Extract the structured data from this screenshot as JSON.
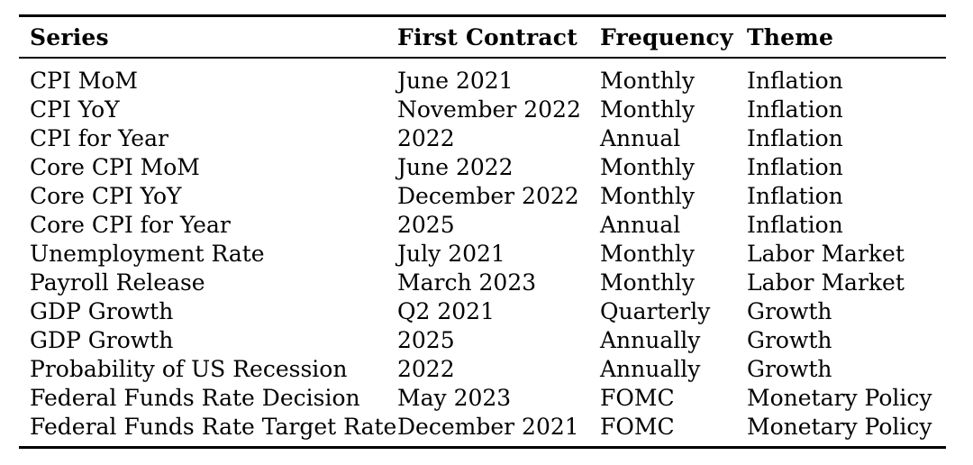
{
  "table": {
    "columns": [
      "Series",
      "First Contract",
      "Frequency",
      "Theme"
    ],
    "rows": [
      {
        "series": "CPI MoM",
        "first_contract": "June 2021",
        "frequency": "Monthly",
        "theme": "Inflation"
      },
      {
        "series": "CPI YoY",
        "first_contract": "November 2022",
        "frequency": "Monthly",
        "theme": "Inflation"
      },
      {
        "series": "CPI for Year",
        "first_contract": "2022",
        "frequency": "Annual",
        "theme": "Inflation"
      },
      {
        "series": "Core CPI MoM",
        "first_contract": "June 2022",
        "frequency": "Monthly",
        "theme": "Inflation"
      },
      {
        "series": "Core CPI YoY",
        "first_contract": "December 2022",
        "frequency": "Monthly",
        "theme": "Inflation"
      },
      {
        "series": "Core CPI for Year",
        "first_contract": "2025",
        "frequency": "Annual",
        "theme": "Inflation"
      },
      {
        "series": "Unemployment Rate",
        "first_contract": "July 2021",
        "frequency": "Monthly",
        "theme": "Labor Market"
      },
      {
        "series": "Payroll Release",
        "first_contract": "March 2023",
        "frequency": "Monthly",
        "theme": "Labor Market"
      },
      {
        "series": "GDP Growth",
        "first_contract": "Q2 2021",
        "frequency": "Quarterly",
        "theme": "Growth"
      },
      {
        "series": "GDP Growth",
        "first_contract": "2025",
        "frequency": "Annually",
        "theme": "Growth"
      },
      {
        "series": "Probability of US Recession",
        "first_contract": "2022",
        "frequency": "Annually",
        "theme": "Growth"
      },
      {
        "series": "Federal Funds Rate Decision",
        "first_contract": "May 2023",
        "frequency": "FOMC",
        "theme": "Monetary Policy"
      },
      {
        "series": "Federal Funds Rate Target Rate",
        "first_contract": "December 2021",
        "frequency": "FOMC",
        "theme": "Monetary Policy"
      }
    ],
    "colors": {
      "text": "#000000",
      "rule": "#000000",
      "background": "#ffffff"
    }
  }
}
